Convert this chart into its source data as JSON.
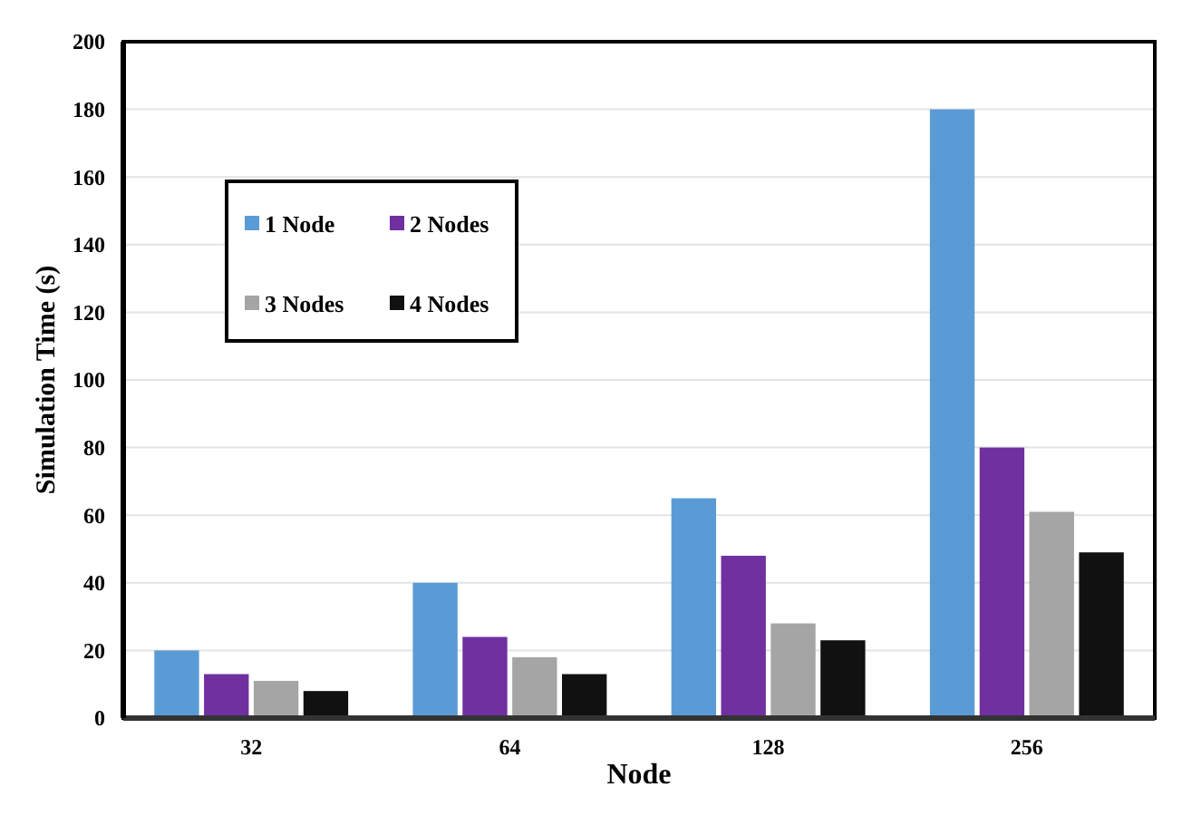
{
  "chart_data": {
    "type": "bar",
    "xlabel": "Node",
    "ylabel": "Simulation Time (s)",
    "categories": [
      "32",
      "64",
      "128",
      "256"
    ],
    "series": [
      {
        "name": "1 Node",
        "color": "#5b9bd5",
        "values": [
          20,
          40,
          65,
          180
        ]
      },
      {
        "name": "2 Nodes",
        "color": "#7030a0",
        "values": [
          13,
          24,
          48,
          80
        ]
      },
      {
        "name": "3 Nodes",
        "color": "#a5a5a5",
        "values": [
          11,
          18,
          28,
          61
        ]
      },
      {
        "name": "4 Nodes",
        "color": "#111111",
        "values": [
          8,
          13,
          23,
          49
        ]
      }
    ],
    "ylim": [
      0,
      200
    ],
    "yticks": [
      0,
      20,
      40,
      60,
      80,
      100,
      120,
      140,
      160,
      180,
      200
    ],
    "grid": "y",
    "legend": "top left"
  }
}
